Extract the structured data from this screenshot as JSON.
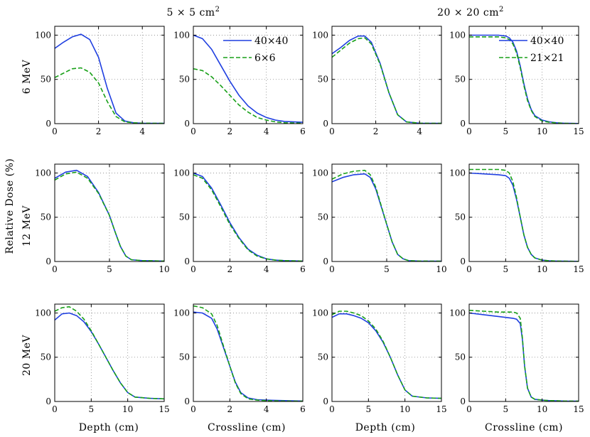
{
  "figure": {
    "column_groups": [
      "5 × 5 cm",
      "20 × 20 cm"
    ],
    "superscript": "2",
    "row_labels": [
      "6 MeV",
      "12 MeV",
      "20 MeV"
    ],
    "y_label": "Relative Dose (%)",
    "x_labels": [
      "Depth (cm)",
      "Crossline (cm)",
      "Depth (cm)",
      "Crossline (cm)"
    ]
  },
  "colors": {
    "solid": "#1f3fe0",
    "dashed": "#18a018",
    "grid": "#888888"
  },
  "chart_data": [
    {
      "id": "r0c0",
      "type": "line",
      "xlim": [
        0,
        5
      ],
      "ylim": [
        0,
        110
      ],
      "xticks": [
        0,
        2,
        4
      ],
      "yticks": [
        0,
        50,
        100
      ],
      "series": [
        {
          "name": "40×40",
          "style": "solid",
          "x": [
            0,
            0.4,
            0.8,
            1.2,
            1.6,
            2,
            2.4,
            2.8,
            3.2,
            3.6,
            4,
            5
          ],
          "y": [
            85,
            92,
            98,
            101,
            95,
            75,
            40,
            12,
            3,
            1,
            0.5,
            0.3
          ]
        },
        {
          "name": "6×6",
          "style": "dashed",
          "x": [
            0,
            0.4,
            0.8,
            1.2,
            1.6,
            2,
            2.4,
            2.8,
            3.2,
            3.6,
            4,
            5
          ],
          "y": [
            52,
            57,
            62,
            63,
            58,
            46,
            25,
            8,
            2,
            1,
            0.5,
            0.3
          ]
        }
      ]
    },
    {
      "id": "r0c1",
      "type": "line",
      "xlim": [
        0,
        6
      ],
      "ylim": [
        0,
        110
      ],
      "xticks": [
        0,
        2,
        4,
        6
      ],
      "yticks": [
        0,
        50,
        100
      ],
      "legend": true,
      "series": [
        {
          "name": "40×40",
          "style": "solid",
          "x": [
            0,
            0.5,
            1,
            1.5,
            2,
            2.5,
            3,
            3.5,
            4,
            4.5,
            5,
            6
          ],
          "y": [
            100,
            96,
            84,
            66,
            48,
            32,
            20,
            12,
            7,
            4,
            2.5,
            1.5
          ]
        },
        {
          "name": "6×6",
          "style": "dashed",
          "x": [
            0,
            0.5,
            1,
            1.5,
            2,
            2.5,
            3,
            3.5,
            4,
            4.5,
            5,
            6
          ],
          "y": [
            62,
            60,
            53,
            43,
            32,
            21,
            13,
            7,
            4,
            2,
            1,
            0.5
          ]
        }
      ]
    },
    {
      "id": "r0c2",
      "type": "line",
      "xlim": [
        0,
        5
      ],
      "ylim": [
        0,
        110
      ],
      "xticks": [
        0,
        2,
        4
      ],
      "yticks": [
        0,
        50,
        100
      ],
      "series": [
        {
          "name": "40×40",
          "style": "solid",
          "x": [
            0,
            0.4,
            0.8,
            1.2,
            1.5,
            1.8,
            2.2,
            2.6,
            3,
            3.4,
            4,
            5
          ],
          "y": [
            79,
            86,
            94,
            99,
            99,
            92,
            68,
            35,
            10,
            2,
            0.5,
            0.3
          ]
        },
        {
          "name": "6×6",
          "style": "dashed",
          "x": [
            0,
            0.4,
            0.8,
            1.2,
            1.5,
            1.8,
            2.2,
            2.6,
            3,
            3.4,
            4,
            5
          ],
          "y": [
            75,
            83,
            91,
            96,
            97,
            90,
            67,
            35,
            10,
            2,
            0.5,
            0.3
          ]
        }
      ]
    },
    {
      "id": "r0c3",
      "type": "line",
      "xlim": [
        0,
        15
      ],
      "ylim": [
        0,
        110
      ],
      "xticks": [
        0,
        5,
        10,
        15
      ],
      "yticks": [
        0,
        50,
        100
      ],
      "legend": true,
      "series": [
        {
          "name": "40×40",
          "style": "solid",
          "x": [
            0,
            1,
            2,
            3,
            4,
            5,
            5.5,
            6,
            6.5,
            7,
            7.5,
            8,
            8.5,
            9,
            10,
            11,
            12,
            13,
            14,
            15
          ],
          "y": [
            100,
            100,
            100,
            100,
            100,
            99,
            97,
            92,
            82,
            65,
            45,
            28,
            16,
            9,
            4,
            2,
            1,
            0.5,
            0.3,
            0.2
          ]
        },
        {
          "name": "21×21",
          "style": "dashed",
          "x": [
            0,
            1,
            2,
            3,
            4,
            5,
            5.5,
            6,
            6.5,
            7,
            7.5,
            8,
            8.5,
            9,
            10,
            11,
            12,
            13,
            14,
            15
          ],
          "y": [
            98,
            98,
            98,
            98,
            98,
            97,
            95,
            90,
            80,
            63,
            43,
            26,
            15,
            8,
            3,
            1.5,
            0.8,
            0.4,
            0.2,
            0.1
          ]
        }
      ]
    },
    {
      "id": "r1c0",
      "type": "line",
      "xlim": [
        0,
        10
      ],
      "ylim": [
        0,
        110
      ],
      "xticks": [
        0,
        5,
        10
      ],
      "yticks": [
        0,
        50,
        100
      ],
      "series": [
        {
          "name": "40×40",
          "style": "solid",
          "x": [
            0,
            1,
            2,
            3,
            4,
            5,
            5.5,
            6,
            6.5,
            7,
            8,
            10
          ],
          "y": [
            94,
            101,
            103,
            96,
            78,
            52,
            34,
            17,
            6,
            2,
            1,
            0.5
          ]
        },
        {
          "name": "6×6",
          "style": "dashed",
          "x": [
            0,
            1,
            2,
            3,
            4,
            5,
            5.5,
            6,
            6.5,
            7,
            8,
            10
          ],
          "y": [
            92,
            99,
            101,
            94,
            77,
            52,
            34,
            17,
            6,
            2,
            1,
            0.5
          ]
        }
      ]
    },
    {
      "id": "r1c1",
      "type": "line",
      "xlim": [
        0,
        6
      ],
      "ylim": [
        0,
        110
      ],
      "xticks": [
        0,
        2,
        4,
        6
      ],
      "yticks": [
        0,
        50,
        100
      ],
      "series": [
        {
          "name": "40×40",
          "style": "solid",
          "x": [
            0,
            0.5,
            1,
            1.5,
            2,
            2.5,
            3,
            3.5,
            4,
            4.5,
            5,
            6
          ],
          "y": [
            100,
            96,
            83,
            64,
            44,
            27,
            14,
            7,
            3,
            1.5,
            1,
            0.5
          ]
        },
        {
          "name": "6×6",
          "style": "dashed",
          "x": [
            0,
            0.5,
            1,
            1.5,
            2,
            2.5,
            3,
            3.5,
            4,
            4.5,
            5,
            6
          ],
          "y": [
            98,
            94,
            81,
            62,
            42,
            26,
            13,
            6,
            3,
            1.5,
            1,
            0.5
          ]
        }
      ]
    },
    {
      "id": "r1c2",
      "type": "line",
      "xlim": [
        0,
        10
      ],
      "ylim": [
        0,
        110
      ],
      "xticks": [
        0,
        5,
        10
      ],
      "yticks": [
        0,
        50,
        100
      ],
      "series": [
        {
          "name": "40×40",
          "style": "solid",
          "x": [
            0,
            1,
            2,
            3,
            3.5,
            4,
            4.5,
            5,
            5.5,
            6,
            6.5,
            7,
            8,
            10
          ],
          "y": [
            90,
            95,
            98,
            99,
            95,
            82,
            62,
            42,
            22,
            8,
            3,
            1,
            0.5,
            0.3
          ]
        },
        {
          "name": "6×6",
          "style": "dashed",
          "x": [
            0,
            1,
            2,
            3,
            3.5,
            4,
            4.5,
            5,
            5.5,
            6,
            6.5,
            7,
            8,
            10
          ],
          "y": [
            93,
            99,
            102,
            103,
            98,
            84,
            63,
            42,
            22,
            8,
            3,
            1,
            0.5,
            0.3
          ]
        }
      ]
    },
    {
      "id": "r1c3",
      "type": "line",
      "xlim": [
        0,
        15
      ],
      "ylim": [
        0,
        110
      ],
      "xticks": [
        0,
        5,
        10,
        15
      ],
      "yticks": [
        0,
        50,
        100
      ],
      "series": [
        {
          "name": "40×40",
          "style": "solid",
          "x": [
            0,
            2,
            4,
            5,
            5.5,
            6,
            6.5,
            7,
            7.5,
            8,
            8.5,
            9,
            10,
            11,
            12,
            13,
            15
          ],
          "y": [
            100,
            99,
            98,
            97,
            94,
            86,
            70,
            50,
            30,
            16,
            8,
            4,
            1.5,
            0.8,
            0.5,
            0.3,
            0.2
          ]
        },
        {
          "name": "21×21",
          "style": "dashed",
          "x": [
            0,
            2,
            4,
            5,
            5.5,
            6,
            6.5,
            7,
            7.5,
            8,
            8.5,
            9,
            10,
            11,
            12,
            13,
            15
          ],
          "y": [
            104,
            104,
            104,
            103,
            100,
            90,
            72,
            50,
            30,
            16,
            8,
            4,
            1.5,
            0.8,
            0.5,
            0.3,
            0.2
          ]
        }
      ]
    },
    {
      "id": "r2c0",
      "type": "line",
      "xlim": [
        0,
        15
      ],
      "ylim": [
        0,
        110
      ],
      "xticks": [
        0,
        5,
        10,
        15
      ],
      "yticks": [
        0,
        50,
        100
      ],
      "series": [
        {
          "name": "40×40",
          "style": "solid",
          "x": [
            0,
            1,
            2,
            3,
            4,
            5,
            6,
            7,
            8,
            9,
            10,
            11,
            13,
            15
          ],
          "y": [
            92,
            99,
            100,
            97,
            90,
            79,
            65,
            50,
            35,
            21,
            10,
            5,
            3.5,
            3
          ]
        },
        {
          "name": "6×6",
          "style": "dashed",
          "x": [
            0,
            1,
            2,
            3,
            4,
            5,
            6,
            7,
            8,
            9,
            10,
            11,
            13,
            15
          ],
          "y": [
            102,
            106,
            107,
            102,
            93,
            80,
            65,
            50,
            35,
            21,
            10,
            5,
            3.5,
            3
          ]
        }
      ]
    },
    {
      "id": "r2c1",
      "type": "line",
      "xlim": [
        0,
        6
      ],
      "ylim": [
        0,
        110
      ],
      "xticks": [
        0,
        2,
        4,
        6
      ],
      "yticks": [
        0,
        50,
        100
      ],
      "series": [
        {
          "name": "40×40",
          "style": "solid",
          "x": [
            0,
            0.5,
            1,
            1.3,
            1.6,
            2,
            2.3,
            2.6,
            3,
            3.5,
            4,
            5,
            6
          ],
          "y": [
            101,
            100,
            94,
            82,
            64,
            40,
            22,
            10,
            4,
            2,
            1.5,
            1,
            0.5
          ]
        },
        {
          "name": "6×6",
          "style": "dashed",
          "x": [
            0,
            0.5,
            1,
            1.3,
            1.6,
            2,
            2.3,
            2.6,
            3,
            3.5,
            4,
            5,
            6
          ],
          "y": [
            108,
            106,
            99,
            86,
            66,
            40,
            21,
            9,
            3,
            1.5,
            1,
            0.5,
            0.3
          ]
        }
      ]
    },
    {
      "id": "r2c2",
      "type": "line",
      "xlim": [
        0,
        15
      ],
      "ylim": [
        0,
        110
      ],
      "xticks": [
        0,
        5,
        10,
        15
      ],
      "yticks": [
        0,
        50,
        100
      ],
      "series": [
        {
          "name": "40×40",
          "style": "solid",
          "x": [
            0,
            1,
            2,
            3,
            4,
            5,
            6,
            7,
            8,
            9,
            10,
            11,
            13,
            15
          ],
          "y": [
            95,
            99,
            99,
            97,
            94,
            89,
            80,
            67,
            50,
            30,
            13,
            6,
            4,
            3.5
          ]
        },
        {
          "name": "6×6",
          "style": "dashed",
          "x": [
            0,
            1,
            2,
            3,
            4,
            5,
            6,
            7,
            8,
            9,
            10,
            11,
            13,
            15
          ],
          "y": [
            98,
            102,
            102,
            100,
            97,
            91,
            82,
            68,
            50,
            30,
            13,
            6,
            4,
            3.5
          ]
        }
      ]
    },
    {
      "id": "r2c3",
      "type": "line",
      "xlim": [
        0,
        15
      ],
      "ylim": [
        0,
        110
      ],
      "xticks": [
        0,
        5,
        10,
        15
      ],
      "yticks": [
        0,
        50,
        100
      ],
      "series": [
        {
          "name": "40×40",
          "style": "solid",
          "x": [
            0,
            2,
            4,
            6,
            6.5,
            7,
            7.3,
            7.6,
            8,
            8.5,
            9,
            10,
            11,
            12,
            13,
            15
          ],
          "y": [
            100,
            98,
            96,
            94,
            93,
            88,
            70,
            40,
            15,
            5,
            2.5,
            1.5,
            1,
            0.8,
            0.5,
            0.3
          ]
        },
        {
          "name": "21×21",
          "style": "dashed",
          "x": [
            0,
            2,
            4,
            6,
            6.5,
            7,
            7.3,
            7.6,
            8,
            8.5,
            9,
            10,
            11,
            12,
            13,
            15
          ],
          "y": [
            103,
            102,
            101,
            101,
            100,
            94,
            72,
            40,
            15,
            5,
            2.5,
            1.5,
            1,
            0.8,
            0.5,
            0.3
          ]
        }
      ]
    }
  ]
}
